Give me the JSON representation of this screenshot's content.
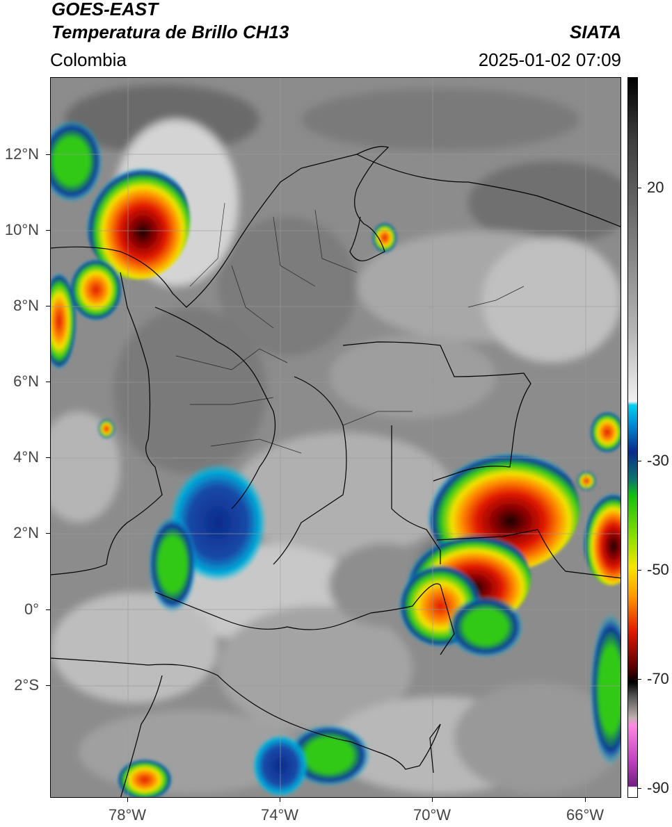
{
  "header": {
    "satellite": "GOES-EAST",
    "product": "Temperatura de Brillo CH13",
    "region": "Colombia",
    "agency": "SIATA",
    "datetime": "2025-01-02 07:09"
  },
  "axes": {
    "lat_labels": [
      "12°N",
      "10°N",
      "8°N",
      "6°N",
      "4°N",
      "2°N",
      "0°",
      "2°S"
    ],
    "lon_labels": [
      "78°W",
      "74°W",
      "70°W",
      "66°W"
    ]
  },
  "colorbar": {
    "labels": [
      "20",
      "-30",
      "-50",
      "-70",
      "-90"
    ],
    "colors": {
      "warm_gray": "#8a8a8a",
      "cyan": "#00c8e6",
      "blue": "#0a2a8c",
      "green": "#2ecc10",
      "yellow": "#f5e600",
      "orange": "#ff8a00",
      "red": "#d81400",
      "darkred": "#5a0000",
      "black": "#000000",
      "magenta": "#c83cc8",
      "purple": "#7a1a8a"
    }
  }
}
